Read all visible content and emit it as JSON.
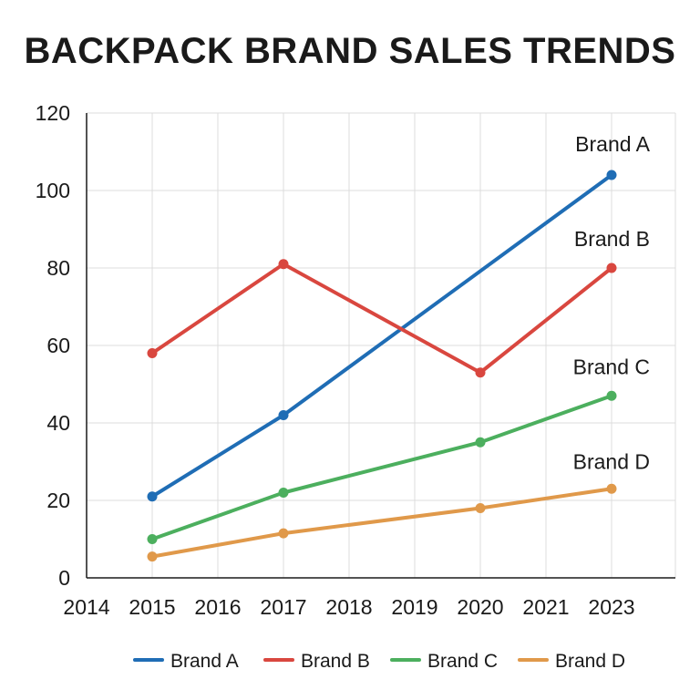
{
  "chart_data": {
    "type": "line",
    "title": "BACKPACK BRAND SALES TRENDS",
    "xlabel": "",
    "ylabel": "",
    "x": [
      "2014",
      "2015",
      "2016",
      "2017",
      "2018",
      "2019",
      "2020",
      "2021",
      "2023"
    ],
    "ylim": [
      0,
      120
    ],
    "yticks": [
      "0",
      "20",
      "40",
      "60",
      "80",
      "100",
      "120"
    ],
    "grid": true,
    "legend_position": "bottom",
    "series": [
      {
        "name": "Brand A",
        "color": "#1f6db5",
        "points": [
          {
            "x": "2015",
            "y": 21
          },
          {
            "x": "2017",
            "y": 42
          },
          {
            "x": "2023",
            "y": 104
          }
        ]
      },
      {
        "name": "Brand B",
        "color": "#d9473f",
        "points": [
          {
            "x": "2015",
            "y": 58
          },
          {
            "x": "2017",
            "y": 81
          },
          {
            "x": "2020",
            "y": 53
          },
          {
            "x": "2023",
            "y": 80
          }
        ]
      },
      {
        "name": "Brand C",
        "color": "#4caf5e",
        "points": [
          {
            "x": "2015",
            "y": 10
          },
          {
            "x": "2017",
            "y": 22
          },
          {
            "x": "2020",
            "y": 35
          },
          {
            "x": "2023",
            "y": 47
          }
        ]
      },
      {
        "name": "Brand D",
        "color": "#e0994a",
        "points": [
          {
            "x": "2015",
            "y": 5.5
          },
          {
            "x": "2017",
            "y": 11.5
          },
          {
            "x": "2020",
            "y": 18
          },
          {
            "x": "2023",
            "y": 23
          }
        ]
      }
    ]
  }
}
